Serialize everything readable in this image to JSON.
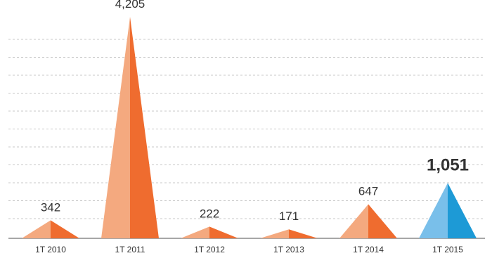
{
  "chart_data": {
    "type": "bar",
    "title": "",
    "xlabel": "",
    "ylabel": "",
    "categories": [
      "1T 2010",
      "1T 2011",
      "1T 2012",
      "1T 2013",
      "1T 2014",
      "1T 2015"
    ],
    "values": [
      342,
      4205,
      222,
      171,
      647,
      1051
    ],
    "value_labels": [
      "342",
      "4,205",
      "222",
      "171",
      "647",
      "1,051"
    ],
    "highlight_index": 5,
    "ylim": [
      0,
      4205
    ],
    "grid": true,
    "colors": {
      "light": "#f4a97f",
      "dark": "#ef6c2f",
      "highlight_light": "#79bfea",
      "highlight_dark": "#1d9ad6",
      "highlight_label": "#1d9ad6",
      "label": "#333333"
    }
  }
}
